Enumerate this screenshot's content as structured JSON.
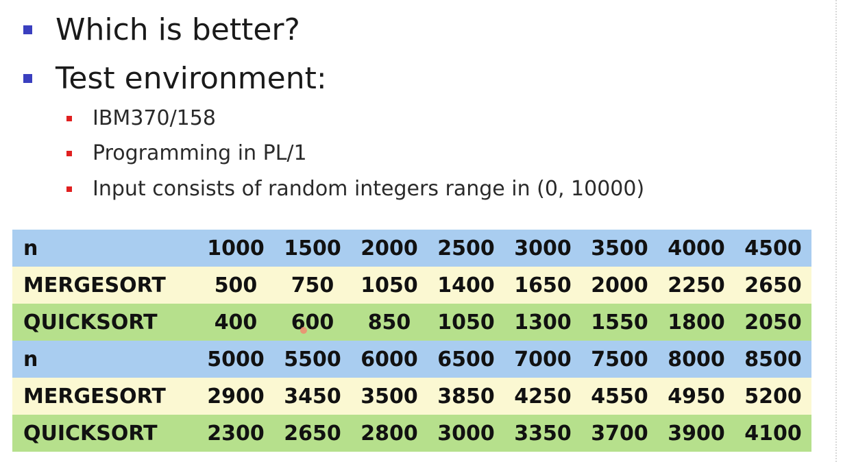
{
  "bullets": [
    {
      "text": "Which is better?"
    },
    {
      "text": "Test environment:"
    }
  ],
  "sub_bullets": [
    {
      "text": "IBM370/158"
    },
    {
      "text": "Programming in PL/1"
    },
    {
      "text": "Input consists of random integers range in (0, 10000)"
    }
  ],
  "table": {
    "rows": [
      {
        "label": "n",
        "values": [
          "1000",
          "1500",
          "2000",
          "2500",
          "3000",
          "3500",
          "4000",
          "4500"
        ]
      },
      {
        "label": "MERGESORT",
        "values": [
          "500",
          "750",
          "1050",
          "1400",
          "1650",
          "2000",
          "2250",
          "2650"
        ]
      },
      {
        "label": "QUICKSORT",
        "values": [
          "400",
          "600",
          "850",
          "1050",
          "1300",
          "1550",
          "1800",
          "2050"
        ]
      },
      {
        "label": "n",
        "values": [
          "5000",
          "5500",
          "6000",
          "6500",
          "7000",
          "7500",
          "8000",
          "8500"
        ]
      },
      {
        "label": "MERGESORT",
        "values": [
          "2900",
          "3450",
          "3500",
          "3850",
          "4250",
          "4550",
          "4950",
          "5200"
        ]
      },
      {
        "label": "QUICKSORT",
        "values": [
          "2300",
          "2650",
          "2800",
          "3000",
          "3350",
          "3700",
          "3900",
          "4100"
        ]
      }
    ]
  },
  "colors": {
    "main_bullet": "#3a3fbf",
    "sub_bullet": "#e02020",
    "row_n": "#a9cdf0",
    "row_mergesort": "#fbf8d2",
    "row_quicksort": "#b6e08c"
  }
}
